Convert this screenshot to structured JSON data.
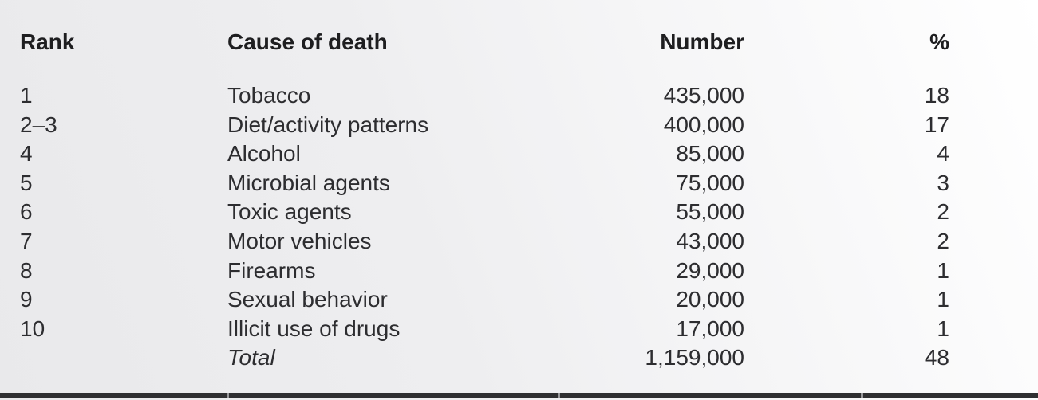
{
  "table": {
    "headers": {
      "rank": "Rank",
      "cause": "Cause of death",
      "number": "Number",
      "percent": "%"
    },
    "rows": [
      {
        "rank": "1",
        "cause": "Tobacco",
        "number": "435,000",
        "percent": "18"
      },
      {
        "rank": "2–3",
        "cause": "Diet/activity patterns",
        "number": "400,000",
        "percent": "17"
      },
      {
        "rank": "4",
        "cause": "Alcohol",
        "number": "85,000",
        "percent": "4"
      },
      {
        "rank": "5",
        "cause": "Microbial agents",
        "number": "75,000",
        "percent": "3"
      },
      {
        "rank": "6",
        "cause": "Toxic agents",
        "number": "55,000",
        "percent": "2"
      },
      {
        "rank": "7",
        "cause": "Motor vehicles",
        "number": "43,000",
        "percent": "2"
      },
      {
        "rank": "8",
        "cause": "Firearms",
        "number": "29,000",
        "percent": "1"
      },
      {
        "rank": "9",
        "cause": "Sexual behavior",
        "number": "20,000",
        "percent": "1"
      },
      {
        "rank": "10",
        "cause": "Illicit use of drugs",
        "number": "17,000",
        "percent": "1"
      }
    ],
    "total": {
      "rank": "",
      "label": "Total",
      "number": "1,159,000",
      "percent": "48"
    },
    "colors": {
      "header_text": "#1e1e20",
      "body_text": "#2d2d30",
      "bottom_rule": "#2f2f31",
      "background_left": "#e9e9eb",
      "background_right": "#ffffff"
    }
  }
}
